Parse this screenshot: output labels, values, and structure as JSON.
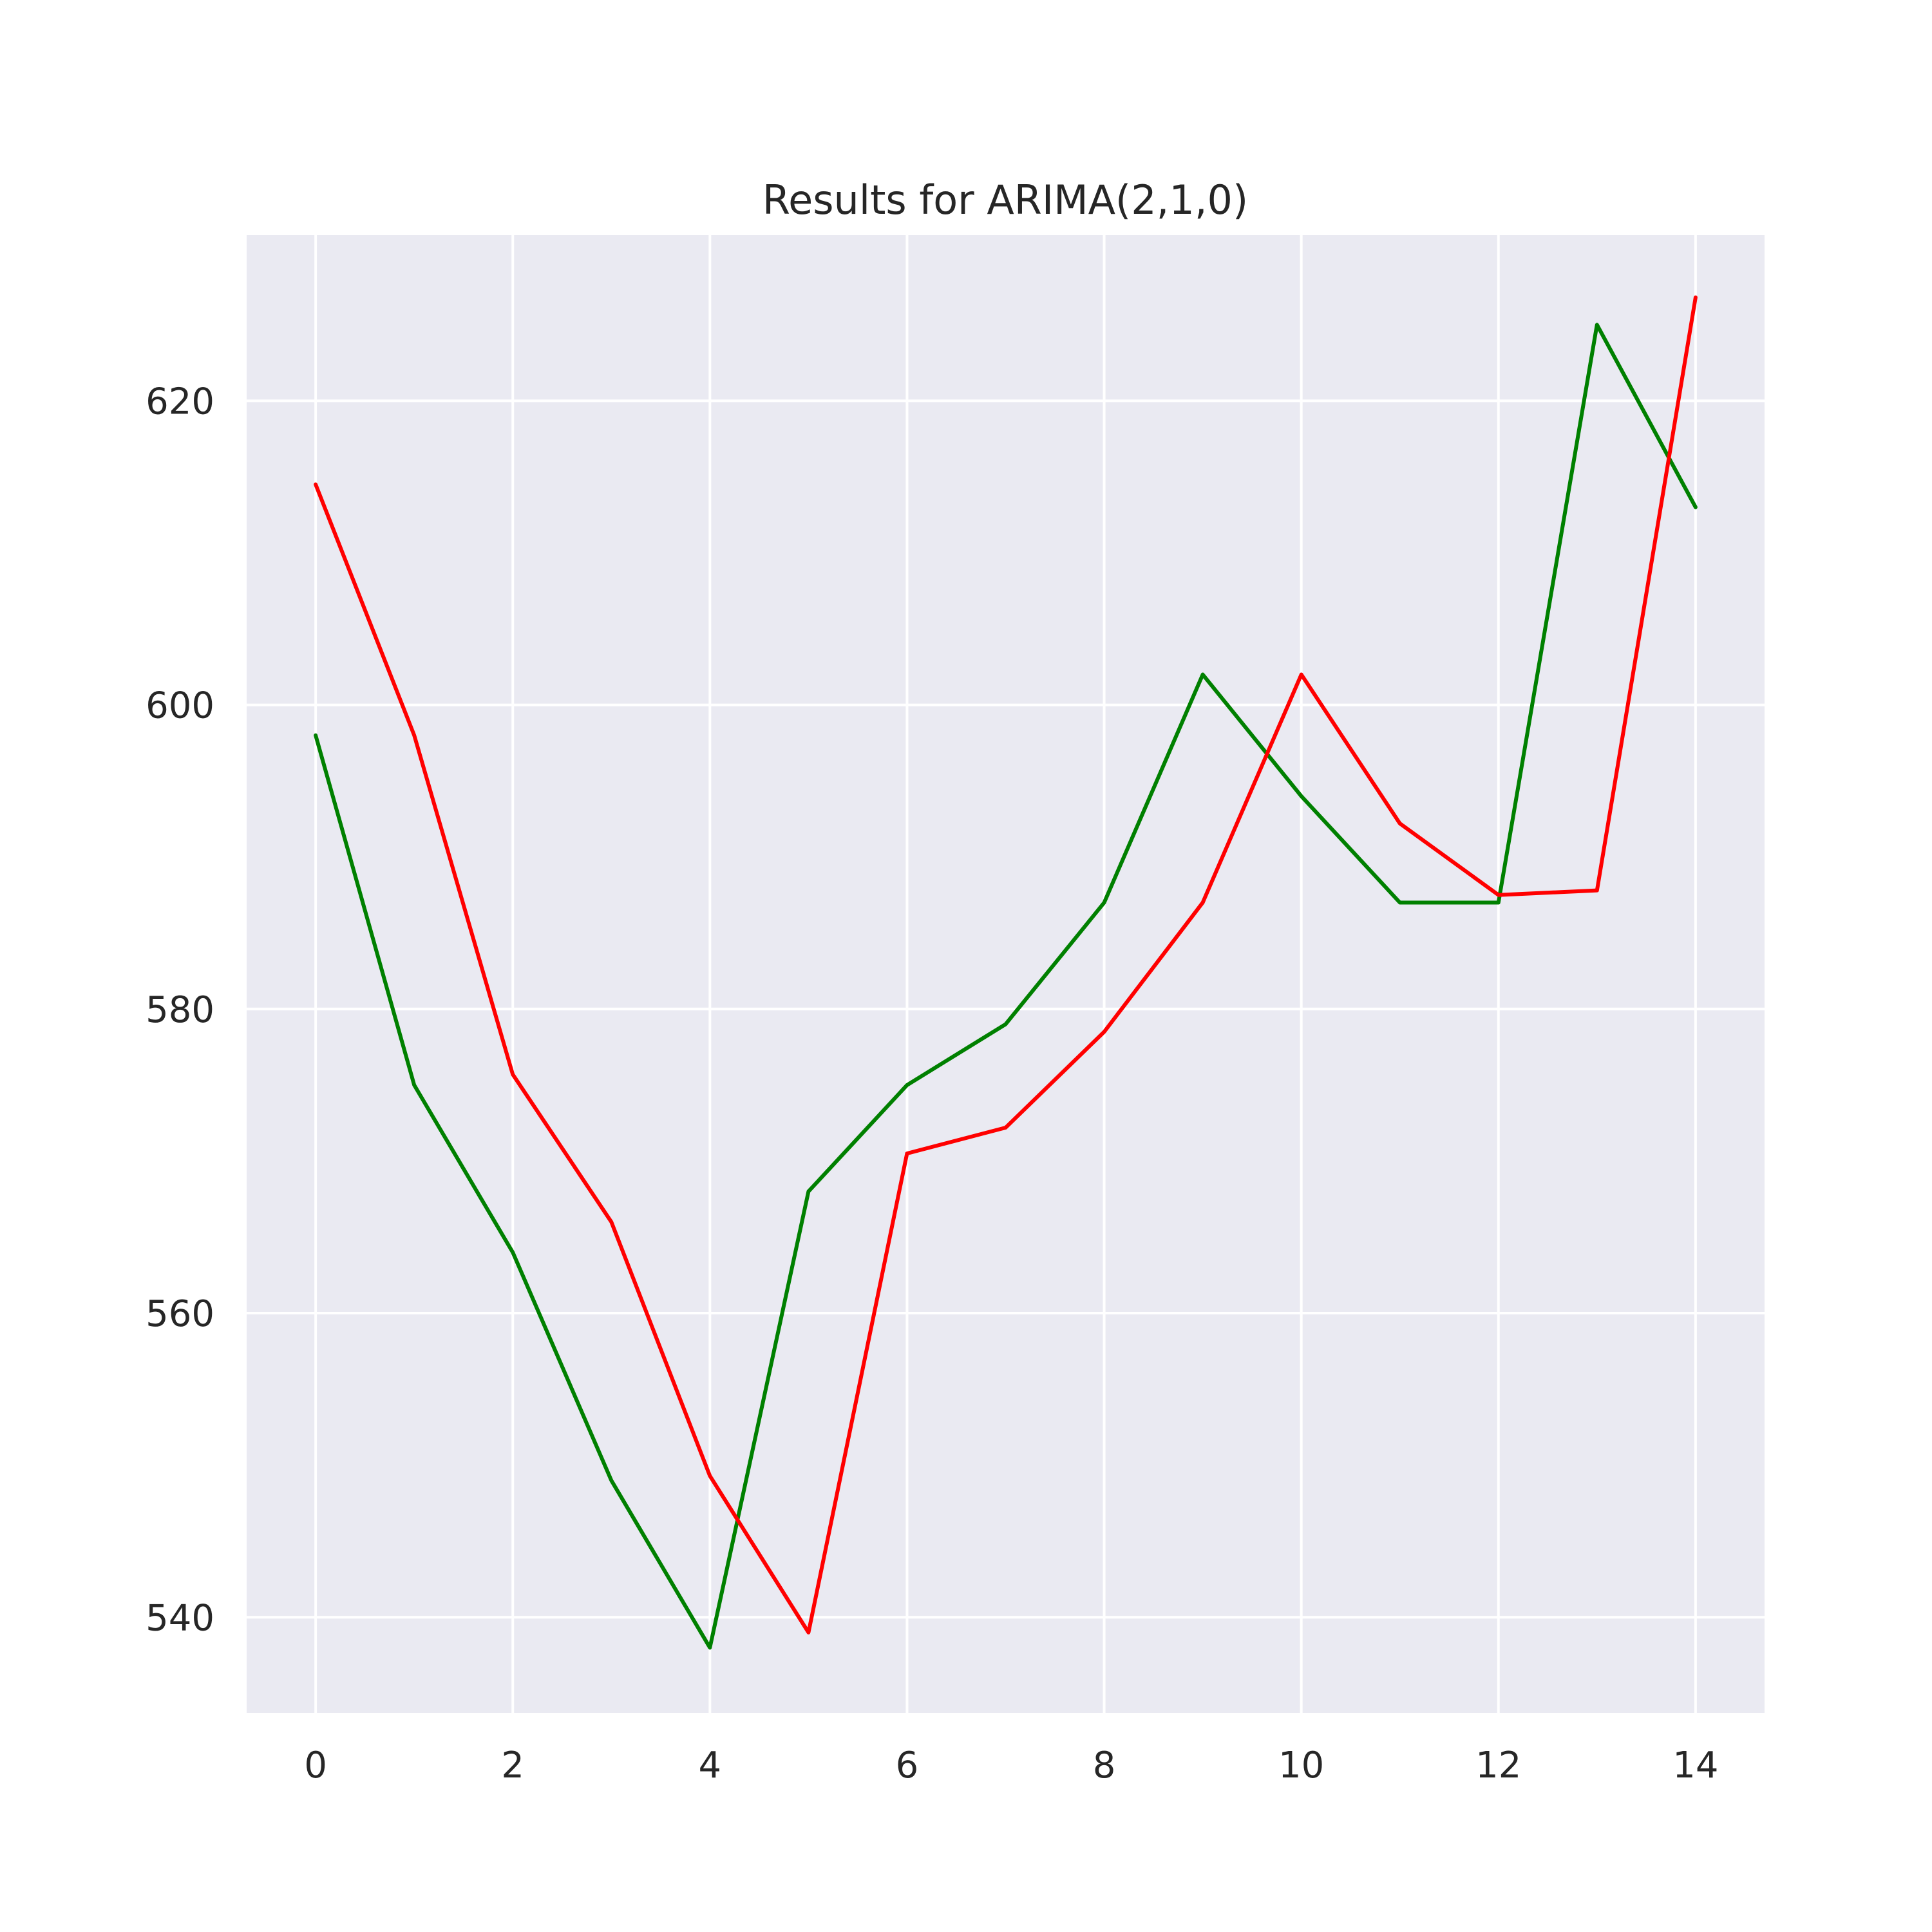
{
  "chart_data": {
    "type": "line",
    "title": "Results for ARIMA(2,1,0)",
    "xlabel": "",
    "ylabel": "",
    "xlim": [
      -0.7,
      14.7
    ],
    "ylim": [
      533.7,
      630.9
    ],
    "grid": true,
    "background_color": "#eaeaf2",
    "x": [
      0,
      1,
      2,
      3,
      4,
      5,
      6,
      7,
      8,
      9,
      10,
      11,
      12,
      13,
      14
    ],
    "x_ticks": [
      0,
      2,
      4,
      6,
      8,
      10,
      12,
      14
    ],
    "x_tick_labels": [
      "0",
      "2",
      "4",
      "6",
      "8",
      "10",
      "12",
      "14"
    ],
    "y_ticks": [
      540,
      560,
      580,
      600,
      620
    ],
    "y_tick_labels": [
      "540",
      "560",
      "580",
      "600",
      "620"
    ],
    "series": [
      {
        "color": "#008000",
        "values": [
          598,
          575,
          564,
          549,
          538,
          568,
          575,
          579,
          587,
          602,
          594,
          587,
          587,
          625,
          613
        ]
      },
      {
        "color": "#ff0000",
        "values": [
          614.5,
          598,
          575.7,
          566,
          549.3,
          539,
          570.5,
          572.2,
          578.5,
          587,
          602,
          592.2,
          587.5,
          587.8,
          626.8
        ]
      }
    ]
  }
}
